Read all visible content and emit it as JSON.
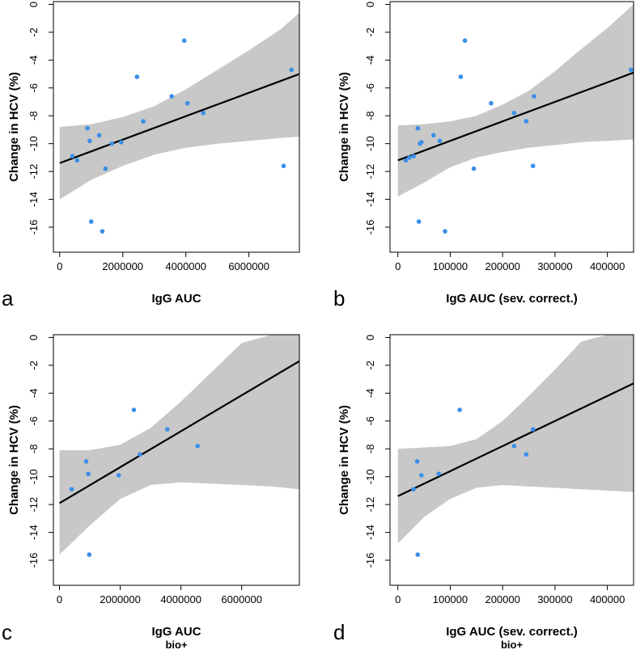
{
  "chart_data": [
    {
      "type": "scatter",
      "panel_label": "a",
      "xlabel": "IgG AUC",
      "xlabel_sub": "",
      "ylabel": "Change in HCV (%)",
      "xlim": [
        -200000,
        7600000
      ],
      "ylim": [
        -17.8,
        0.2
      ],
      "xticks": [
        0,
        2000000,
        4000000,
        6000000
      ],
      "xtick_labels": [
        "0",
        "2000000",
        "4000000",
        "6000000"
      ],
      "yticks": [
        0,
        -2,
        -4,
        -6,
        -8,
        -10,
        -12,
        -14,
        -16
      ],
      "ytick_labels": [
        "0",
        "-2",
        "-4",
        "-6",
        "-8",
        "-10",
        "-12",
        "-14",
        "-16"
      ],
      "points": {
        "x": [
          400000,
          550000,
          880000,
          950000,
          1000000,
          1250000,
          1350000,
          1450000,
          1650000,
          1950000,
          2450000,
          2650000,
          3550000,
          3950000,
          4050000,
          4550000,
          7100000,
          7350000
        ],
        "y": [
          -10.9,
          -11.2,
          -8.9,
          -9.8,
          -15.6,
          -9.4,
          -16.3,
          -11.8,
          -10.0,
          -9.9,
          -5.2,
          -8.4,
          -6.6,
          -2.6,
          -7.1,
          -7.8,
          -11.6,
          -4.7
        ]
      },
      "fit_line": {
        "x": [
          0,
          7600000
        ],
        "y": [
          -11.4,
          -5.0
        ]
      },
      "ci_band": {
        "x": [
          0,
          1000000,
          2000000,
          3000000,
          4000000,
          5000000,
          6000000,
          7000000,
          7600000
        ],
        "upper": [
          -8.8,
          -8.6,
          -8.1,
          -7.3,
          -6.1,
          -4.7,
          -3.3,
          -1.8,
          -0.6
        ],
        "lower": [
          -14.0,
          -12.6,
          -11.6,
          -10.8,
          -10.3,
          -10.0,
          -9.8,
          -9.6,
          -9.5
        ]
      },
      "colors": {
        "point": "#3b8fe8",
        "band": "#c8c8c8",
        "line": "#000000"
      }
    },
    {
      "type": "scatter",
      "panel_label": "b",
      "xlabel": "IgG AUC (sev. correct.)",
      "xlabel_sub": "",
      "ylabel": "Change in HCV (%)",
      "xlim": [
        -15000,
        450000
      ],
      "ylim": [
        -17.8,
        0.2
      ],
      "xticks": [
        0,
        100000,
        200000,
        300000,
        400000
      ],
      "xtick_labels": [
        "0",
        "100000",
        "200000",
        "300000",
        "400000"
      ],
      "yticks": [
        0,
        -2,
        -4,
        -6,
        -8,
        -10,
        -12,
        -14,
        -16
      ],
      "ytick_labels": [
        "0",
        "-2",
        "-4",
        "-6",
        "-8",
        "-10",
        "-12",
        "-14",
        "-16"
      ],
      "points": {
        "x": [
          15000,
          22000,
          30000,
          38000,
          40000,
          42000,
          45000,
          68000,
          80000,
          90000,
          120000,
          128000,
          145000,
          178000,
          222000,
          245000,
          258000,
          260000,
          445000
        ],
        "y": [
          -11.2,
          -11.0,
          -10.9,
          -8.9,
          -15.6,
          -10.0,
          -9.9,
          -9.4,
          -9.8,
          -16.3,
          -5.2,
          -2.6,
          -11.8,
          -7.1,
          -7.8,
          -8.4,
          -11.6,
          -6.6,
          -4.7
        ]
      },
      "fit_line": {
        "x": [
          0,
          450000
        ],
        "y": [
          -11.2,
          -4.9
        ]
      },
      "ci_band": {
        "x": [
          0,
          50000,
          100000,
          150000,
          200000,
          250000,
          300000,
          350000,
          400000,
          450000
        ],
        "upper": [
          -8.7,
          -8.6,
          -8.4,
          -8.0,
          -7.2,
          -6.2,
          -4.8,
          -3.2,
          -1.7,
          0.0
        ],
        "lower": [
          -13.8,
          -12.8,
          -11.7,
          -11.0,
          -10.6,
          -10.3,
          -10.1,
          -9.9,
          -9.8,
          -9.7
        ]
      },
      "colors": {
        "point": "#3b8fe8",
        "band": "#c8c8c8",
        "line": "#000000"
      }
    },
    {
      "type": "scatter",
      "panel_label": "c",
      "xlabel": "IgG AUC",
      "xlabel_sub": "bio+",
      "ylabel": "Change in HCV (%)",
      "xlim": [
        -200000,
        7900000
      ],
      "ylim": [
        -17.8,
        0.2
      ],
      "xticks": [
        0,
        2000000,
        4000000,
        6000000
      ],
      "xtick_labels": [
        "0",
        "2000000",
        "4000000",
        "6000000"
      ],
      "yticks": [
        0,
        -2,
        -4,
        -6,
        -8,
        -10,
        -12,
        -14,
        -16
      ],
      "ytick_labels": [
        "0",
        "-2",
        "-4",
        "-6",
        "-8",
        "-10",
        "-12",
        "-14",
        "-16"
      ],
      "points": {
        "x": [
          400000,
          880000,
          950000,
          980000,
          1950000,
          2450000,
          2650000,
          3550000,
          4550000
        ],
        "y": [
          -10.9,
          -8.9,
          -9.8,
          -15.6,
          -9.9,
          -5.2,
          -8.4,
          -6.6,
          -7.8
        ]
      },
      "fit_line": {
        "x": [
          0,
          7900000
        ],
        "y": [
          -11.9,
          -1.7
        ]
      },
      "ci_band": {
        "x": [
          0,
          1000000,
          2000000,
          3000000,
          4000000,
          5000000,
          6000000,
          7000000,
          7900000
        ],
        "upper": [
          -8.1,
          -8.1,
          -7.7,
          -6.5,
          -4.6,
          -2.5,
          -0.4,
          0.2,
          0.2
        ],
        "lower": [
          -15.6,
          -13.5,
          -11.6,
          -10.6,
          -10.4,
          -10.5,
          -10.6,
          -10.7,
          -10.9
        ]
      },
      "colors": {
        "point": "#3b8fe8",
        "band": "#c8c8c8",
        "line": "#000000"
      }
    },
    {
      "type": "scatter",
      "panel_label": "d",
      "xlabel": "IgG AUC (sev. correct.)",
      "xlabel_sub": "bio+",
      "ylabel": "Change in HCV (%)",
      "xlim": [
        -15000,
        450000
      ],
      "ylim": [
        -17.8,
        0.2
      ],
      "xticks": [
        0,
        100000,
        200000,
        300000,
        400000
      ],
      "xtick_labels": [
        "0",
        "100000",
        "200000",
        "300000",
        "400000"
      ],
      "yticks": [
        0,
        -2,
        -4,
        -6,
        -8,
        -10,
        -12,
        -14,
        -16
      ],
      "ytick_labels": [
        "0",
        "-2",
        "-4",
        "-6",
        "-8",
        "-10",
        "-12",
        "-14",
        "-16"
      ],
      "points": {
        "x": [
          30000,
          37000,
          38000,
          45000,
          78000,
          118000,
          222000,
          245000,
          258000
        ],
        "y": [
          -10.9,
          -8.9,
          -15.6,
          -9.9,
          -9.8,
          -5.2,
          -7.8,
          -8.4,
          -6.6
        ]
      },
      "fit_line": {
        "x": [
          0,
          450000
        ],
        "y": [
          -11.4,
          -3.3
        ]
      },
      "ci_band": {
        "x": [
          0,
          50000,
          100000,
          150000,
          200000,
          250000,
          300000,
          350000,
          400000,
          450000
        ],
        "upper": [
          -8.0,
          -7.9,
          -7.8,
          -7.3,
          -6.0,
          -4.2,
          -2.3,
          -0.3,
          0.2,
          0.2
        ],
        "lower": [
          -14.8,
          -12.9,
          -11.6,
          -10.8,
          -10.6,
          -10.7,
          -10.8,
          -10.9,
          -11.0,
          -11.1
        ]
      },
      "colors": {
        "point": "#3b8fe8",
        "band": "#c8c8c8",
        "line": "#000000"
      }
    }
  ]
}
